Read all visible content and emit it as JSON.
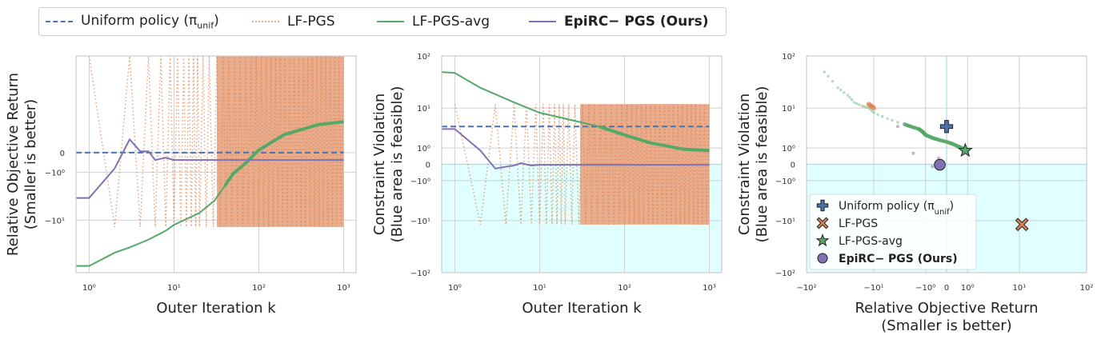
{
  "legend": {
    "uniform": "Uniform policy (π",
    "uniform_sub": "unif",
    "uniform_close": ")",
    "lfpgs": "LF-PGS",
    "lfpgs_avg": "LF-PGS-avg",
    "epirc": "EpiRC− PGS (Ours)"
  },
  "colors": {
    "uniform": "#4c72b0",
    "lfpgs": "#dd8452",
    "lfpgs_fill": "#e8a987",
    "lfpgs_avg": "#55a868",
    "epirc": "#8172b3",
    "feasible": "#e0ffff",
    "grid": "#d0d0d0",
    "zero_line": "#add8e6"
  },
  "chart_data": [
    {
      "type": "line",
      "xlabel": "Outer Iteration k",
      "ylabel": "Relative Objective Return",
      "ylabel2": "(Smaller is better)",
      "x_scale": "log",
      "y_scale": "symlog",
      "xlim": [
        0.7,
        1400
      ],
      "x_ticks": [
        "10⁰",
        "10¹",
        "10²",
        "10³"
      ],
      "y_ticks": [
        "0",
        "−10⁰",
        "−10¹"
      ],
      "series": [
        {
          "name": "Uniform policy (π_unif)",
          "style": "dashed",
          "x": [
            0.7,
            1000
          ],
          "y": [
            0,
            0
          ]
        },
        {
          "name": "LF-PGS",
          "style": "dotted",
          "range_low": -13,
          "range_high": 30
        },
        {
          "name": "LF-PGS-avg",
          "style": "solid",
          "x": [
            0.7,
            1,
            2,
            3,
            5,
            8,
            10,
            20,
            30,
            40,
            50,
            70,
            100,
            200,
            500,
            1000
          ],
          "y": [
            -55,
            -55,
            -34,
            -28,
            -21,
            -15,
            -12,
            -7.5,
            -4.5,
            -2.2,
            -1.1,
            -0.45,
            0.1,
            0.9,
            1.7,
            2.0
          ]
        },
        {
          "name": "EpiRC− PGS (Ours)",
          "style": "solid",
          "x": [
            0.7,
            1,
            2,
            3,
            4,
            5,
            6,
            8,
            10,
            20,
            100,
            1000
          ],
          "y": [
            -4,
            -4,
            -0.75,
            0.6,
            0.05,
            0.05,
            -0.3,
            -0.2,
            -0.3,
            -0.3,
            -0.3,
            -0.3
          ]
        }
      ]
    },
    {
      "type": "line",
      "xlabel": "Outer Iteration k",
      "ylabel": "Constraint Violation",
      "ylabel2": "(Blue area is feasible)",
      "x_scale": "log",
      "y_scale": "symlog",
      "xlim": [
        0.7,
        1400
      ],
      "ylim": [
        -100,
        100
      ],
      "x_ticks": [
        "10⁰",
        "10¹",
        "10²",
        "10³"
      ],
      "y_ticks": [
        "10²",
        "10¹",
        "10⁰",
        "0",
        "−10⁰",
        "−10¹",
        "−10²"
      ],
      "series": [
        {
          "name": "Uniform policy (π_unif)",
          "style": "dashed",
          "x": [
            0.7,
            1000
          ],
          "y": [
            4,
            4
          ]
        },
        {
          "name": "LF-PGS",
          "style": "dotted",
          "range_low": -12,
          "range_high": 12
        },
        {
          "name": "LF-PGS-avg",
          "style": "solid",
          "x": [
            0.7,
            1,
            2,
            5,
            10,
            20,
            50,
            100,
            200,
            500,
            1000
          ],
          "y": [
            50,
            48,
            25,
            13,
            8,
            6,
            4,
            2.5,
            1.5,
            0.9,
            0.8
          ]
        },
        {
          "name": "EpiRC− PGS (Ours)",
          "style": "solid",
          "x": [
            0.7,
            1,
            2,
            3,
            5,
            6,
            8,
            10,
            100,
            1000
          ],
          "y": [
            3.5,
            3.5,
            0.8,
            -0.2,
            -0.05,
            0.05,
            -0.05,
            -0.02,
            -0.02,
            -0.02
          ]
        }
      ]
    },
    {
      "type": "scatter",
      "xlabel": "Relative Objective Return",
      "xlabel2": "(Smaller is better)",
      "ylabel": "Constraint Violation",
      "ylabel2": "(Blue area is feasible)",
      "x_scale": "symlog",
      "y_scale": "symlog",
      "xlim": [
        -100,
        100
      ],
      "ylim": [
        -100,
        100
      ],
      "x_ticks": [
        "−10²",
        "−10¹",
        "−10⁰",
        "0",
        "10⁰",
        "10¹",
        "10²"
      ],
      "y_ticks": [
        "10²",
        "10¹",
        "10⁰",
        "0",
        "−10⁰",
        "−10¹",
        "−10²"
      ],
      "legend_placement": "lower-left",
      "points": [
        {
          "name": "Uniform policy (π_unif)",
          "marker": "plus",
          "x": 0,
          "y": 4
        },
        {
          "name": "LF-PGS",
          "marker": "x",
          "x": 11,
          "y": -12
        },
        {
          "name": "LF-PGS-avg",
          "marker": "star",
          "x": 0.85,
          "y": 0.8
        },
        {
          "name": "EpiRC− PGS (Ours)",
          "marker": "circle",
          "x": -0.25,
          "y": -0.02
        }
      ],
      "trajectory": {
        "x": [
          -55,
          -35,
          -25,
          -20,
          -15,
          -12,
          -10,
          -6,
          -3,
          -1.5,
          -1.2,
          -1.0,
          -0.5,
          0.0,
          0.4,
          0.7,
          0.85
        ],
        "y": [
          50,
          25,
          18,
          13,
          11,
          10,
          8,
          6,
          4.5,
          3.5,
          3.0,
          2.5,
          2.0,
          1.6,
          1.2,
          0.95,
          0.8
        ]
      },
      "lfpgs_cluster": {
        "x": [
          -12,
          -11.5,
          -11,
          -10.5,
          -10
        ],
        "y": [
          12,
          11.5,
          11,
          10.5,
          10
        ]
      },
      "outliers": [
        {
          "x": -4,
          "y": 4
        },
        {
          "x": -2,
          "y": 0.6
        },
        {
          "x": -0.6,
          "y": -0.1
        },
        {
          "x": -0.3,
          "y": 0.3
        }
      ],
      "legend": [
        "Uniform policy (π_unif)",
        "LF-PGS",
        "LF-PGS-avg",
        "EpiRC− PGS (Ours)"
      ]
    }
  ]
}
